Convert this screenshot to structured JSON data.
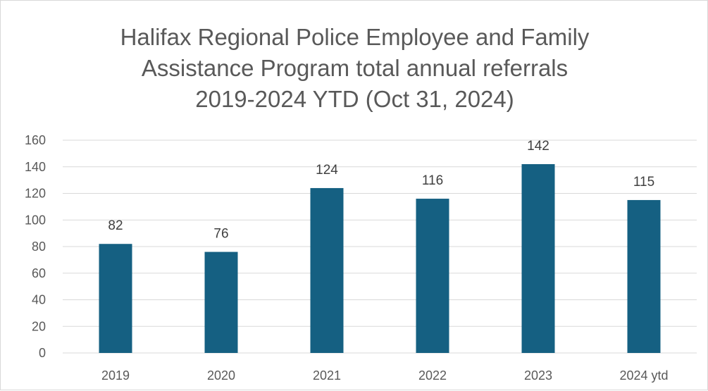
{
  "chart_data": {
    "type": "bar",
    "title_lines": [
      "Halifax Regional Police Employee and Family",
      "Assistance Program total annual referrals",
      "2019-2024 YTD (Oct 31, 2024)"
    ],
    "categories": [
      "2019",
      "2020",
      "2021",
      "2022",
      "2023",
      "2024 ytd"
    ],
    "values": [
      82,
      76,
      124,
      116,
      142,
      115
    ],
    "data_labels": [
      "82",
      "76",
      "124",
      "116",
      "142",
      "115"
    ],
    "ylim": [
      0,
      160
    ],
    "y_ticks": [
      "0",
      "20",
      "40",
      "60",
      "80",
      "100",
      "120",
      "140",
      "160"
    ],
    "xlabel": "",
    "ylabel": "",
    "grid": true,
    "legend": "none",
    "bar_color": "#156082",
    "grid_color": "#d9d9d9"
  }
}
